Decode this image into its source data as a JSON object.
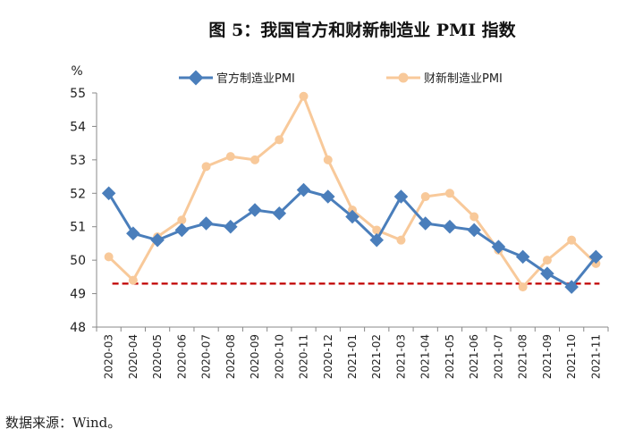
{
  "chart_data": {
    "type": "line",
    "title": "图 5：我国官方和财新制造业 PMI 指数",
    "ylabel": "%",
    "ylim": [
      48,
      55
    ],
    "yticks": [
      48,
      49,
      50,
      51,
      52,
      53,
      54,
      55
    ],
    "grid": false,
    "legend_position": "top",
    "categories": [
      "2020-03",
      "2020-04",
      "2020-05",
      "2020-06",
      "2020-07",
      "2020-08",
      "2020-09",
      "2020-10",
      "2020-11",
      "2020-12",
      "2021-01",
      "2021-02",
      "2021-03",
      "2021-04",
      "2021-05",
      "2021-06",
      "2021-07",
      "2021-08",
      "2021-09",
      "2021-10",
      "2021-11"
    ],
    "series": [
      {
        "name": "官方制造业PMI",
        "color": "#4a7ebb",
        "marker": "diamond",
        "values": [
          52.0,
          50.8,
          50.6,
          50.9,
          51.1,
          51.0,
          51.5,
          51.4,
          52.1,
          51.9,
          51.3,
          50.6,
          51.9,
          51.1,
          51.0,
          50.9,
          50.4,
          50.1,
          49.6,
          49.2,
          50.1
        ]
      },
      {
        "name": "财新制造业PMI",
        "color": "#f8c99a",
        "marker": "circle",
        "values": [
          50.1,
          49.4,
          50.7,
          51.2,
          52.8,
          53.1,
          53.0,
          53.6,
          54.9,
          53.0,
          51.5,
          50.9,
          50.6,
          51.9,
          52.0,
          51.3,
          50.3,
          49.2,
          50.0,
          50.6,
          49.9
        ]
      }
    ],
    "reference_line": {
      "value": 49.3,
      "color": "#c00000",
      "style": "dashed"
    }
  },
  "source_note": "数据来源：Wind。"
}
